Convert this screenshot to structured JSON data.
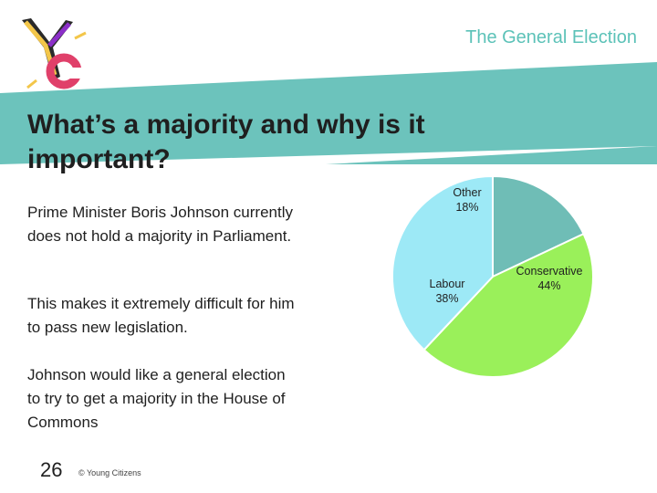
{
  "header": {
    "title": "The General Election"
  },
  "slide": {
    "title": "What’s a majority and why is it important?",
    "paragraphs": [
      "Prime Minister Boris Johnson currently does not hold a majority in Parliament.",
      "This makes it extremely difficult for him to pass new legislation.",
      "Johnson would like a general election to try to get a majority in the House of Commons"
    ]
  },
  "footer": {
    "page_number": "26",
    "copyright": "© Young Citizens"
  },
  "colors": {
    "teal": "#6cc3bc",
    "conservative": "#9af05a",
    "labour": "#9de9f6",
    "other": "#6fbdb6"
  },
  "chart_data": {
    "type": "pie",
    "slices": [
      {
        "label": "Other",
        "display": "18%",
        "value": 18,
        "color": "#6fbdb6"
      },
      {
        "label": "Conservative",
        "display": "44%",
        "value": 44,
        "color": "#9af05a"
      },
      {
        "label": "Labour",
        "display": "38%",
        "value": 38,
        "color": "#9de9f6"
      }
    ]
  }
}
